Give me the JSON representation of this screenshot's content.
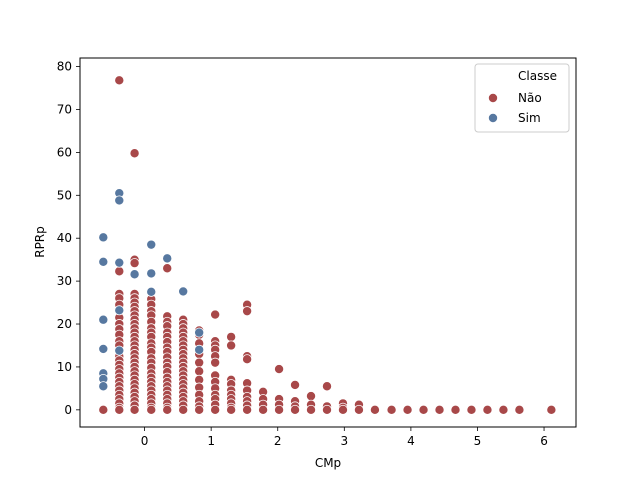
{
  "chart_data": {
    "type": "scatter",
    "xlabel": "CMp",
    "ylabel": "RPRp",
    "xlim": [
      -0.97,
      6.48
    ],
    "ylim": [
      -4,
      82
    ],
    "xticks": [
      0,
      1,
      2,
      3,
      4,
      5,
      6
    ],
    "yticks": [
      0,
      10,
      20,
      30,
      40,
      50,
      60,
      70,
      80
    ],
    "grid": false,
    "legend": {
      "placement": "top-right",
      "title": "Classe",
      "entries": [
        {
          "label": "Não",
          "color": "#a84849"
        },
        {
          "label": "Sim",
          "color": "#5778a0"
        }
      ]
    },
    "series": [
      {
        "name": "Não",
        "color": "#a84849",
        "points": [
          [
            -0.62,
            0
          ],
          [
            -0.38,
            76.8
          ],
          [
            -0.38,
            32.3
          ],
          [
            -0.38,
            27
          ],
          [
            -0.38,
            26
          ],
          [
            -0.38,
            24.5
          ],
          [
            -0.38,
            23
          ],
          [
            -0.38,
            21.5
          ],
          [
            -0.38,
            20
          ],
          [
            -0.38,
            18.8
          ],
          [
            -0.38,
            17.5
          ],
          [
            -0.38,
            16
          ],
          [
            -0.38,
            15
          ],
          [
            -0.38,
            13.5
          ],
          [
            -0.38,
            12.5
          ],
          [
            -0.38,
            11.5
          ],
          [
            -0.38,
            10.5
          ],
          [
            -0.38,
            9.5
          ],
          [
            -0.38,
            8.5
          ],
          [
            -0.38,
            7.5
          ],
          [
            -0.38,
            6.5
          ],
          [
            -0.38,
            5.5
          ],
          [
            -0.38,
            4.5
          ],
          [
            -0.38,
            3.5
          ],
          [
            -0.38,
            2.5
          ],
          [
            -0.38,
            1.5
          ],
          [
            -0.38,
            0.5
          ],
          [
            -0.38,
            0
          ],
          [
            -0.15,
            59.8
          ],
          [
            -0.15,
            35
          ],
          [
            -0.15,
            34.2
          ],
          [
            -0.15,
            27
          ],
          [
            -0.15,
            26
          ],
          [
            -0.15,
            25
          ],
          [
            -0.15,
            24
          ],
          [
            -0.15,
            23
          ],
          [
            -0.15,
            22
          ],
          [
            -0.15,
            21
          ],
          [
            -0.15,
            20
          ],
          [
            -0.15,
            19
          ],
          [
            -0.15,
            18
          ],
          [
            -0.15,
            17
          ],
          [
            -0.15,
            16
          ],
          [
            -0.15,
            15
          ],
          [
            -0.15,
            14
          ],
          [
            -0.15,
            13
          ],
          [
            -0.15,
            12
          ],
          [
            -0.15,
            11
          ],
          [
            -0.15,
            10
          ],
          [
            -0.15,
            9
          ],
          [
            -0.15,
            8
          ],
          [
            -0.15,
            7
          ],
          [
            -0.15,
            6
          ],
          [
            -0.15,
            5
          ],
          [
            -0.15,
            4
          ],
          [
            -0.15,
            3
          ],
          [
            -0.15,
            2
          ],
          [
            -0.15,
            1
          ],
          [
            -0.15,
            0
          ],
          [
            0.1,
            25.8
          ],
          [
            0.1,
            24.5
          ],
          [
            0.1,
            23
          ],
          [
            0.1,
            22
          ],
          [
            0.1,
            20.5
          ],
          [
            0.1,
            19
          ],
          [
            0.1,
            18
          ],
          [
            0.1,
            17
          ],
          [
            0.1,
            15.5
          ],
          [
            0.1,
            14.5
          ],
          [
            0.1,
            13.5
          ],
          [
            0.1,
            12
          ],
          [
            0.1,
            11
          ],
          [
            0.1,
            9.8
          ],
          [
            0.1,
            8.5
          ],
          [
            0.1,
            7.5
          ],
          [
            0.1,
            6.5
          ],
          [
            0.1,
            5.5
          ],
          [
            0.1,
            4.5
          ],
          [
            0.1,
            3.5
          ],
          [
            0.1,
            2.5
          ],
          [
            0.1,
            1.5
          ],
          [
            0.1,
            0.5
          ],
          [
            0.1,
            0
          ],
          [
            0.34,
            33
          ],
          [
            0.34,
            21.8
          ],
          [
            0.34,
            20.5
          ],
          [
            0.34,
            19.5
          ],
          [
            0.34,
            18
          ],
          [
            0.34,
            17
          ],
          [
            0.34,
            15.8
          ],
          [
            0.34,
            14.5
          ],
          [
            0.34,
            13.5
          ],
          [
            0.34,
            12.2
          ],
          [
            0.34,
            11
          ],
          [
            0.34,
            10
          ],
          [
            0.34,
            8.8
          ],
          [
            0.34,
            7.5
          ],
          [
            0.34,
            6.5
          ],
          [
            0.34,
            5.5
          ],
          [
            0.34,
            4.5
          ],
          [
            0.34,
            3.5
          ],
          [
            0.34,
            2.5
          ],
          [
            0.34,
            1.5
          ],
          [
            0.34,
            0.5
          ],
          [
            0.34,
            0
          ],
          [
            0.58,
            21
          ],
          [
            0.58,
            20
          ],
          [
            0.58,
            19
          ],
          [
            0.58,
            18
          ],
          [
            0.58,
            17
          ],
          [
            0.58,
            16
          ],
          [
            0.58,
            15
          ],
          [
            0.58,
            14
          ],
          [
            0.58,
            13
          ],
          [
            0.58,
            12
          ],
          [
            0.58,
            11
          ],
          [
            0.58,
            10
          ],
          [
            0.58,
            9
          ],
          [
            0.58,
            8
          ],
          [
            0.58,
            7
          ],
          [
            0.58,
            6
          ],
          [
            0.58,
            5
          ],
          [
            0.58,
            4
          ],
          [
            0.58,
            3
          ],
          [
            0.58,
            2
          ],
          [
            0.58,
            1
          ],
          [
            0.58,
            0
          ],
          [
            0.82,
            18.5
          ],
          [
            0.82,
            17.5
          ],
          [
            0.82,
            15.5
          ],
          [
            0.82,
            13
          ],
          [
            0.82,
            11
          ],
          [
            0.82,
            9
          ],
          [
            0.82,
            7
          ],
          [
            0.82,
            5.2
          ],
          [
            0.82,
            3.5
          ],
          [
            0.82,
            2
          ],
          [
            0.82,
            0.8
          ],
          [
            0.82,
            0
          ],
          [
            1.06,
            22.2
          ],
          [
            1.06,
            16
          ],
          [
            1.06,
            15
          ],
          [
            1.06,
            14
          ],
          [
            1.06,
            12.5
          ],
          [
            1.06,
            11
          ],
          [
            1.06,
            8
          ],
          [
            1.06,
            6.5
          ],
          [
            1.06,
            5
          ],
          [
            1.06,
            3.5
          ],
          [
            1.06,
            2.5
          ],
          [
            1.06,
            1.2
          ],
          [
            1.06,
            0
          ],
          [
            1.3,
            17
          ],
          [
            1.3,
            15
          ],
          [
            1.3,
            7
          ],
          [
            1.3,
            6
          ],
          [
            1.3,
            4.5
          ],
          [
            1.3,
            3.5
          ],
          [
            1.3,
            2.5
          ],
          [
            1.3,
            1.5
          ],
          [
            1.3,
            0.5
          ],
          [
            1.3,
            0
          ],
          [
            1.54,
            24.5
          ],
          [
            1.54,
            23
          ],
          [
            1.54,
            12.5
          ],
          [
            1.54,
            11.8
          ],
          [
            1.54,
            6.2
          ],
          [
            1.54,
            4.5
          ],
          [
            1.54,
            3
          ],
          [
            1.54,
            2
          ],
          [
            1.54,
            1
          ],
          [
            1.54,
            0
          ],
          [
            1.78,
            4.2
          ],
          [
            1.78,
            2.5
          ],
          [
            1.78,
            1.2
          ],
          [
            1.78,
            0
          ],
          [
            2.02,
            9.5
          ],
          [
            2.02,
            2.5
          ],
          [
            2.02,
            1.2
          ],
          [
            2.02,
            0
          ],
          [
            2.26,
            5.8
          ],
          [
            2.26,
            2
          ],
          [
            2.26,
            0.8
          ],
          [
            2.26,
            0
          ],
          [
            2.5,
            3.2
          ],
          [
            2.5,
            1.2
          ],
          [
            2.5,
            0
          ],
          [
            2.74,
            5.5
          ],
          [
            2.74,
            0.8
          ],
          [
            2.74,
            0
          ],
          [
            2.98,
            1.5
          ],
          [
            2.98,
            0.5
          ],
          [
            2.98,
            0
          ],
          [
            3.22,
            1.2
          ],
          [
            3.22,
            0
          ],
          [
            3.46,
            0
          ],
          [
            3.71,
            0
          ],
          [
            3.95,
            0
          ],
          [
            4.19,
            0
          ],
          [
            4.43,
            0
          ],
          [
            4.67,
            0
          ],
          [
            4.91,
            0
          ],
          [
            5.15,
            0
          ],
          [
            5.39,
            0
          ],
          [
            5.63,
            0
          ],
          [
            6.11,
            0
          ]
        ]
      },
      {
        "name": "Sim",
        "color": "#5778a0",
        "points": [
          [
            -0.62,
            40.2
          ],
          [
            -0.62,
            34.5
          ],
          [
            -0.62,
            21
          ],
          [
            -0.62,
            14.2
          ],
          [
            -0.62,
            8.5
          ],
          [
            -0.62,
            7.2
          ],
          [
            -0.62,
            5.5
          ],
          [
            -0.38,
            50.5
          ],
          [
            -0.38,
            48.8
          ],
          [
            -0.38,
            34.3
          ],
          [
            -0.38,
            23.2
          ],
          [
            -0.38,
            13.8
          ],
          [
            -0.15,
            31.6
          ],
          [
            0.1,
            38.5
          ],
          [
            0.1,
            31.8
          ],
          [
            0.1,
            27.5
          ],
          [
            0.34,
            35.3
          ],
          [
            0.58,
            27.6
          ],
          [
            0.82,
            18
          ],
          [
            0.82,
            14
          ]
        ]
      }
    ]
  }
}
